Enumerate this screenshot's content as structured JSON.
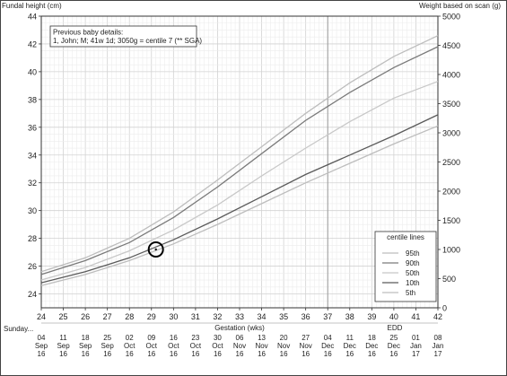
{
  "chart_data": {
    "type": "line",
    "y_left_label": "Fundal height (cm)",
    "y_right_label": "Weight based on scan (g)",
    "xlabel": "Gestation (wks)",
    "x_range": [
      24,
      42
    ],
    "y_left_range": [
      23,
      44
    ],
    "y_right_range": [
      0,
      5000
    ],
    "grid": true,
    "x_ticks": [
      "24",
      "25",
      "26",
      "27",
      "28",
      "29",
      "30",
      "31",
      "32",
      "33",
      "34",
      "35",
      "36",
      "37",
      "38",
      "39",
      "40",
      "41",
      "42"
    ],
    "y_left_ticks": [
      "24",
      "26",
      "28",
      "30",
      "32",
      "34",
      "36",
      "38",
      "40",
      "42",
      "44"
    ],
    "y_right_ticks": [
      "0",
      "500",
      "1000",
      "1500",
      "2000",
      "2500",
      "3000",
      "3500",
      "4000",
      "4500",
      "5000"
    ],
    "marker_line_x": 37,
    "series": [
      {
        "name": "95th",
        "color": "#bdbdbd",
        "x": [
          24,
          26,
          28,
          30,
          32,
          34,
          36,
          38,
          40,
          42
        ],
        "y": [
          25.6,
          26.6,
          28.0,
          29.9,
          32.2,
          34.6,
          37.0,
          39.2,
          41.1,
          42.6
        ]
      },
      {
        "name": "90th",
        "color": "#7a7a7a",
        "x": [
          24,
          26,
          28,
          30,
          32,
          34,
          36,
          38,
          40,
          42
        ],
        "y": [
          25.4,
          26.4,
          27.7,
          29.5,
          31.7,
          34.1,
          36.5,
          38.5,
          40.3,
          41.8
        ]
      },
      {
        "name": "50th",
        "color": "#c8c8c8",
        "x": [
          24,
          26,
          28,
          30,
          32,
          34,
          36,
          38,
          40,
          42
        ],
        "y": [
          25.0,
          25.9,
          27.1,
          28.6,
          30.4,
          32.5,
          34.5,
          36.4,
          38.1,
          39.3
        ]
      },
      {
        "name": "10th",
        "color": "#5a5a5a",
        "x": [
          24,
          26,
          28,
          30,
          32,
          34,
          36,
          38,
          40,
          42
        ],
        "y": [
          24.8,
          25.6,
          26.6,
          27.9,
          29.4,
          31.0,
          32.6,
          34.0,
          35.4,
          36.9
        ]
      },
      {
        "name": "5th",
        "color": "#bdbdbd",
        "x": [
          24,
          26,
          28,
          30,
          32,
          34,
          36,
          38,
          40,
          42
        ],
        "y": [
          24.6,
          25.4,
          26.4,
          27.6,
          29.0,
          30.5,
          32.0,
          33.4,
          34.8,
          36.1
        ]
      }
    ],
    "points": [
      {
        "x": 29.2,
        "y": 27.2
      }
    ],
    "legend_title": "centile lines",
    "legend_placement": "bottom-right"
  },
  "info_box": {
    "line1": "Previous baby details:",
    "line2": "1, John; M; 41w 1d; 3050g = centile 7 (** SGA)"
  },
  "date_axis": {
    "start_label": "Sunday...",
    "edd_label": "EDD",
    "dates": [
      {
        "day": "04",
        "mon": "Sep",
        "yr": "16"
      },
      {
        "day": "11",
        "mon": "Sep",
        "yr": "16"
      },
      {
        "day": "18",
        "mon": "Sep",
        "yr": "16"
      },
      {
        "day": "25",
        "mon": "Sep",
        "yr": "16"
      },
      {
        "day": "02",
        "mon": "Oct",
        "yr": "16"
      },
      {
        "day": "09",
        "mon": "Oct",
        "yr": "16"
      },
      {
        "day": "16",
        "mon": "Oct",
        "yr": "16"
      },
      {
        "day": "23",
        "mon": "Oct",
        "yr": "16"
      },
      {
        "day": "30",
        "mon": "Oct",
        "yr": "16"
      },
      {
        "day": "06",
        "mon": "Nov",
        "yr": "16"
      },
      {
        "day": "13",
        "mon": "Nov",
        "yr": "16"
      },
      {
        "day": "20",
        "mon": "Nov",
        "yr": "16"
      },
      {
        "day": "27",
        "mon": "Nov",
        "yr": "16"
      },
      {
        "day": "04",
        "mon": "Dec",
        "yr": "16"
      },
      {
        "day": "11",
        "mon": "Dec",
        "yr": "16"
      },
      {
        "day": "18",
        "mon": "Dec",
        "yr": "16"
      },
      {
        "day": "25",
        "mon": "Dec",
        "yr": "16"
      },
      {
        "day": "01",
        "mon": "Jan",
        "yr": "17"
      },
      {
        "day": "08",
        "mon": "Jan",
        "yr": "17"
      }
    ]
  }
}
